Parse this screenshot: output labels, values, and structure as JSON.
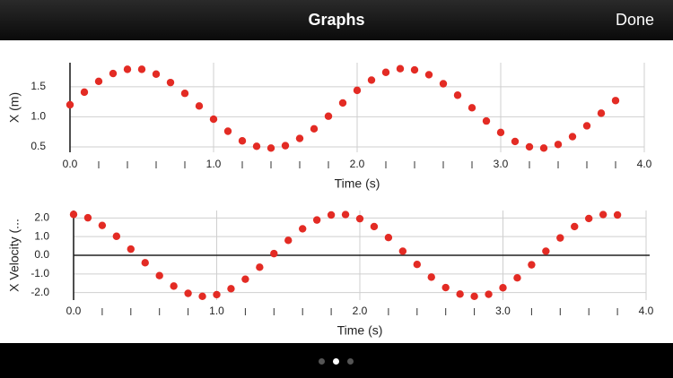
{
  "header": {
    "title": "Graphs",
    "done": "Done"
  },
  "chart_data": [
    {
      "type": "scatter",
      "color": "#e32b24",
      "grid": true,
      "x_label": "Time (s)",
      "y_label": "X (m)",
      "x": [
        0,
        0.1,
        0.2,
        0.3,
        0.4,
        0.5,
        0.6,
        0.7,
        0.8,
        0.9,
        1.0,
        1.1,
        1.2,
        1.3,
        1.4,
        1.5,
        1.6,
        1.7,
        1.8,
        1.9,
        2.0,
        2.1,
        2.2,
        2.3,
        2.4,
        2.5,
        2.6,
        2.7,
        2.8,
        2.9,
        3.0,
        3.1,
        3.2,
        3.3,
        3.4,
        3.5,
        3.6,
        3.7,
        3.8
      ],
      "values": [
        1.2,
        1.41,
        1.59,
        1.72,
        1.79,
        1.79,
        1.71,
        1.57,
        1.39,
        1.18,
        0.96,
        0.76,
        0.6,
        0.51,
        0.48,
        0.52,
        0.64,
        0.8,
        1.01,
        1.23,
        1.44,
        1.61,
        1.74,
        1.8,
        1.78,
        1.7,
        1.55,
        1.36,
        1.15,
        0.93,
        0.74,
        0.59,
        0.5,
        0.48,
        0.54,
        0.67,
        0.85,
        1.06,
        1.27
      ],
      "xlim": [
        0,
        4
      ],
      "xticks": [
        {
          "value": 0,
          "label": "0.0"
        },
        {
          "value": 1,
          "label": "1.0"
        },
        {
          "value": 2,
          "label": "2.0"
        },
        {
          "value": 3,
          "label": "3.0"
        },
        {
          "value": 4,
          "label": "4.0"
        }
      ],
      "ylim": [
        0.41,
        1.9
      ],
      "yticks": [
        0.5,
        {
          "value": 1,
          "label": "1.0"
        },
        1.5
      ]
    },
    {
      "type": "scatter",
      "color": "#e32b24",
      "grid": true,
      "x_label": "Time (s)",
      "y_label": "X Velocity (...",
      "x": [
        0,
        0.1,
        0.2,
        0.3,
        0.4,
        0.5,
        0.6,
        0.7,
        0.8,
        0.9,
        1.0,
        1.1,
        1.2,
        1.3,
        1.4,
        1.5,
        1.6,
        1.7,
        1.8,
        1.9,
        2.0,
        2.1,
        2.2,
        2.3,
        2.4,
        2.5,
        2.6,
        2.7,
        2.8,
        2.9,
        3.0,
        3.1,
        3.2,
        3.3,
        3.4,
        3.5,
        3.6,
        3.7,
        3.8
      ],
      "values": [
        2.19,
        2.01,
        1.6,
        1.02,
        0.33,
        -0.4,
        -1.09,
        -1.65,
        -2.04,
        -2.2,
        -2.11,
        -1.79,
        -1.28,
        -0.64,
        0.09,
        0.8,
        1.42,
        1.89,
        2.16,
        2.18,
        1.96,
        1.54,
        0.95,
        0.22,
        -0.49,
        -1.17,
        -1.73,
        -2.08,
        -2.2,
        -2.09,
        -1.74,
        -1.21,
        -0.51,
        0.22,
        0.93,
        1.54,
        1.97,
        2.18,
        2.16
      ],
      "xlim": [
        0,
        4
      ],
      "xticks": [
        {
          "value": 0,
          "label": "0.0"
        },
        {
          "value": 1,
          "label": "1.0"
        },
        {
          "value": 2,
          "label": "2.0"
        },
        {
          "value": 3,
          "label": "3.0"
        },
        {
          "value": 4,
          "label": "4.0"
        }
      ],
      "ylim": [
        -2.4,
        2.4
      ],
      "yticks": [
        {
          "value": -2,
          "label": "-2.0"
        },
        {
          "value": -1,
          "label": "-1.0"
        },
        {
          "value": 0,
          "label": "0.0"
        },
        {
          "value": 1,
          "label": "1.0"
        },
        {
          "value": 2,
          "label": "2.0"
        }
      ]
    }
  ]
}
